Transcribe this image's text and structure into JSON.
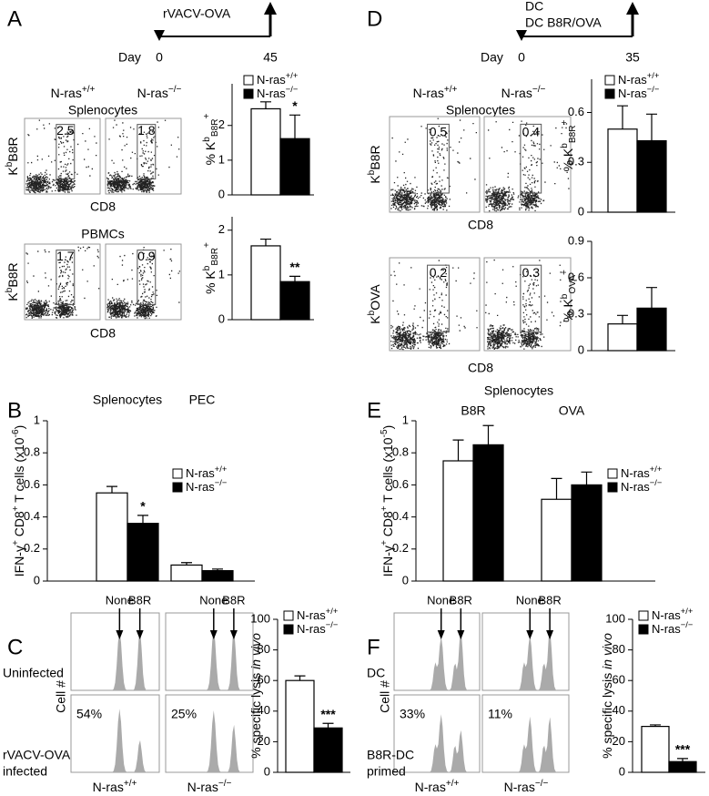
{
  "panel_labels": [
    "A",
    "B",
    "C",
    "D",
    "E",
    "F"
  ],
  "timelines": [
    {
      "treatment": [
        "rVACV-OVA"
      ],
      "day_label": "Day",
      "start": "0",
      "end": "45"
    },
    {
      "treatment": [
        "DC",
        "DC B8R/OVA"
      ],
      "day_label": "Day",
      "start": "0",
      "end": "35"
    }
  ],
  "flow_panels": [
    {
      "genotypes": [
        "N-ras+/+",
        "N-ras−/−"
      ],
      "rows": [
        {
          "title": "Splenocytes",
          "y_label": [
            {
              "text": "K"
            },
            {
              "sup": "b"
            },
            {
              "text": "B8R"
            }
          ],
          "x_label": "CD8",
          "gates": [
            "2.5",
            "1.8"
          ]
        },
        {
          "title": "PBMCs",
          "y_label": [
            {
              "text": "K"
            },
            {
              "sup": "b"
            },
            {
              "text": "B8R"
            }
          ],
          "x_label": "CD8",
          "gates": [
            "1.7",
            "0.9"
          ]
        }
      ]
    },
    {
      "genotypes": [
        "N-ras+/+",
        "N-ras−/−"
      ],
      "rows": [
        {
          "title": "Splenocytes",
          "y_label": [
            {
              "text": "K"
            },
            {
              "sup": "b"
            },
            {
              "text": "B8R"
            }
          ],
          "x_label": "CD8",
          "gates": [
            "0.5",
            "0.4"
          ]
        },
        {
          "y_label": [
            {
              "text": "K"
            },
            {
              "sup": "b"
            },
            {
              "text": "OVA"
            }
          ],
          "x_label": "CD8",
          "gates": [
            "0.2",
            "0.3"
          ]
        }
      ]
    }
  ],
  "lysis_panels": [
    {
      "arrows": [
        "None",
        "B8R",
        "None",
        "B8R"
      ],
      "y_label": "Cell #",
      "row_labels": [
        [
          "Uninfected"
        ],
        [
          "rVACV-OVA",
          "infected"
        ]
      ],
      "percentages": [
        "54%",
        "25%"
      ],
      "genotypes": [
        "N-ras+/+",
        "N-ras−/−"
      ]
    },
    {
      "arrows": [
        "None",
        "B8R",
        "None",
        "B8R"
      ],
      "y_label": "Cell #",
      "row_labels": [
        [
          "DC"
        ],
        [
          "B8R-DC",
          "primed"
        ]
      ],
      "percentages": [
        "33%",
        "11%"
      ],
      "genotypes": [
        "N-ras+/+",
        "N-ras−/−"
      ]
    }
  ],
  "chart_data": [
    {
      "type": "bar",
      "y_label": [
        {
          "text": "% K"
        },
        {
          "sup": "b"
        },
        {
          "sub": "B8R"
        },
        {
          "sup": "+"
        }
      ],
      "categories": [
        null
      ],
      "series": [
        {
          "name": "N-ras+/+",
          "color": "#ffffff",
          "values": [
            2.48
          ],
          "errors": [
            0.2
          ]
        },
        {
          "name": "N-ras−/−",
          "color": "#000000",
          "values": [
            1.62
          ],
          "errors": [
            0.68
          ],
          "annotations": [
            "*"
          ]
        }
      ],
      "ylim": [
        0,
        3.2
      ],
      "yticks": [
        0,
        1,
        2
      ],
      "legend": "upper right"
    },
    {
      "type": "bar",
      "y_label": [
        {
          "text": "% K"
        },
        {
          "sup": "b"
        },
        {
          "sub": "B8R"
        },
        {
          "sup": "+"
        }
      ],
      "categories": [
        null
      ],
      "series": [
        {
          "name": "N-ras+/+",
          "color": "#ffffff",
          "values": [
            1.65
          ],
          "errors": [
            0.15
          ]
        },
        {
          "name": "N-ras−/−",
          "color": "#000000",
          "values": [
            0.85
          ],
          "errors": [
            0.12
          ],
          "annotations": [
            "**"
          ]
        }
      ],
      "ylim": [
        0,
        2.3
      ],
      "yticks": [
        0,
        1,
        2
      ]
    },
    {
      "type": "bar",
      "y_label": [
        {
          "text": "% K"
        },
        {
          "sup": "b"
        },
        {
          "sub": "B8R"
        },
        {
          "sup": "+"
        }
      ],
      "categories": [
        null
      ],
      "series": [
        {
          "name": "N-ras+/+",
          "color": "#ffffff",
          "values": [
            0.5
          ],
          "errors": [
            0.14
          ]
        },
        {
          "name": "N-ras−/−",
          "color": "#000000",
          "values": [
            0.43
          ],
          "errors": [
            0.16
          ]
        }
      ],
      "ylim": [
        0,
        0.8
      ],
      "yticks": [
        0,
        0.3,
        0.6
      ],
      "legend": "upper right"
    },
    {
      "type": "bar",
      "y_label": [
        {
          "text": "% K"
        },
        {
          "sup": "b"
        },
        {
          "sub": "OVA"
        },
        {
          "sup": "+"
        }
      ],
      "categories": [
        null
      ],
      "series": [
        {
          "name": "N-ras+/+",
          "color": "#ffffff",
          "values": [
            0.22
          ],
          "errors": [
            0.07
          ]
        },
        {
          "name": "N-ras−/−",
          "color": "#000000",
          "values": [
            0.35
          ],
          "errors": [
            0.17
          ]
        }
      ],
      "ylim": [
        0,
        0.9
      ],
      "yticks": [
        0,
        0.3,
        0.6,
        0.9
      ]
    },
    {
      "type": "bar",
      "y_label": [
        {
          "text": "IFN-γ"
        },
        {
          "sup": "+"
        },
        {
          "text": " CD8"
        },
        {
          "sup": "+"
        },
        {
          "text": " T cells (x10"
        },
        {
          "sup": "-6"
        },
        {
          "text": ")"
        }
      ],
      "categories": [
        "Splenocytes",
        "PEC"
      ],
      "series": [
        {
          "name": "N-ras+/+",
          "color": "#ffffff",
          "values": [
            0.55,
            0.1
          ],
          "errors": [
            0.04,
            0.015
          ]
        },
        {
          "name": "N-ras−/−",
          "color": "#000000",
          "values": [
            0.36,
            0.065
          ],
          "errors": [
            0.05,
            0.01
          ],
          "annotations": [
            "*",
            null
          ]
        }
      ],
      "ylim": [
        0,
        1
      ],
      "yticks": [
        0,
        0.2,
        0.4,
        0.6,
        0.8,
        1
      ],
      "legend": "center right"
    },
    {
      "type": "bar",
      "title": "Splenocytes",
      "y_label": [
        {
          "text": "IFN-γ"
        },
        {
          "sup": "+"
        },
        {
          "text": " CD8"
        },
        {
          "sup": "+"
        },
        {
          "text": " T cells (x10"
        },
        {
          "sup": "-5"
        },
        {
          "text": ")"
        }
      ],
      "categories": [
        "B8R",
        "OVA"
      ],
      "series": [
        {
          "name": "N-ras+/+",
          "color": "#ffffff",
          "values": [
            0.75,
            0.51
          ],
          "errors": [
            0.13,
            0.13
          ]
        },
        {
          "name": "N-ras−/−",
          "color": "#000000",
          "values": [
            0.85,
            0.6
          ],
          "errors": [
            0.12,
            0.08
          ]
        }
      ],
      "ylim": [
        0,
        1
      ],
      "yticks": [
        0,
        0.2,
        0.4,
        0.6,
        0.8,
        1
      ],
      "legend": "center right"
    },
    {
      "type": "bar",
      "y_label": [
        {
          "text": "% specific lysis "
        },
        {
          "italic": "in vivo"
        }
      ],
      "categories": [
        null
      ],
      "series": [
        {
          "name": "N-ras+/+",
          "color": "#ffffff",
          "values": [
            60
          ],
          "errors": [
            3
          ]
        },
        {
          "name": "N-ras−/−",
          "color": "#000000",
          "values": [
            29
          ],
          "errors": [
            3
          ],
          "annotations": [
            "***"
          ]
        }
      ],
      "ylim": [
        0,
        100
      ],
      "yticks": [
        0,
        20,
        40,
        60,
        80,
        100
      ],
      "legend": "upper right"
    },
    {
      "type": "bar",
      "y_label": [
        {
          "text": "% specific lysis "
        },
        {
          "italic": "in vivo"
        }
      ],
      "categories": [
        null
      ],
      "series": [
        {
          "name": "N-ras+/+",
          "color": "#ffffff",
          "values": [
            30
          ],
          "errors": [
            1
          ]
        },
        {
          "name": "N-ras−/−",
          "color": "#000000",
          "values": [
            7
          ],
          "errors": [
            2
          ],
          "annotations": [
            "***"
          ]
        }
      ],
      "ylim": [
        0,
        100
      ],
      "yticks": [
        0,
        20,
        40,
        60,
        80,
        100
      ],
      "legend": "upper right"
    }
  ]
}
